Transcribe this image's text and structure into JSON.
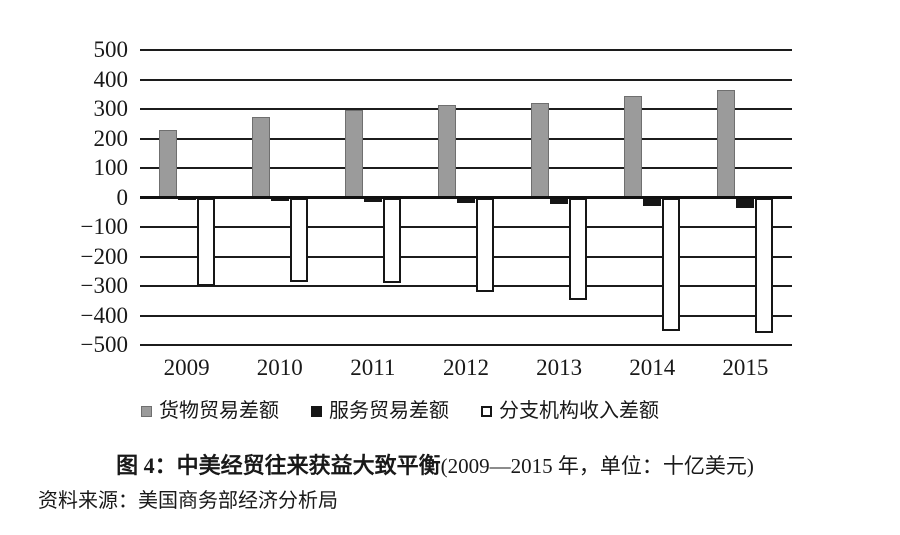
{
  "chart_data": {
    "type": "bar",
    "title": "图 4：中美经贸往来获益大致平衡",
    "title_note": "(2009—2015 年，单位：十亿美元)",
    "source": "资料来源：美国商务部经济分析局",
    "categories": [
      "2009",
      "2010",
      "2011",
      "2012",
      "2013",
      "2014",
      "2015"
    ],
    "series": [
      {
        "key": "goods-trade-balance",
        "name": "货物贸易差额",
        "color": "#9b9b9b",
        "border": "#6f6f6f",
        "values": [
          230,
          273,
          296,
          314,
          319,
          343,
          366
        ]
      },
      {
        "key": "services-trade-balance",
        "name": "服务贸易差额",
        "color": "#161616",
        "border": "#161616",
        "values": [
          -9,
          -13,
          -16,
          -19,
          -21,
          -28,
          -35
        ]
      },
      {
        "key": "branch-income-balance",
        "name": "分支机构收入差额",
        "color": "#ffffff",
        "border": "#161616",
        "values": [
          -299,
          -286,
          -291,
          -321,
          -349,
          -451,
          -459
        ]
      }
    ],
    "ylim": [
      -500,
      500
    ],
    "yticks": [
      500,
      400,
      300,
      200,
      100,
      0,
      -100,
      -200,
      -300,
      -400,
      -500
    ],
    "ytick_labels": [
      "500",
      "400",
      "300",
      "200",
      "100",
      "0",
      "−100",
      "−200",
      "−300",
      "−400",
      "−500"
    ],
    "grid": true,
    "legend_position": "bottom",
    "colors": {
      "text": "#191919",
      "gridline": "#1c1c1c",
      "background": "#ffffff"
    }
  }
}
